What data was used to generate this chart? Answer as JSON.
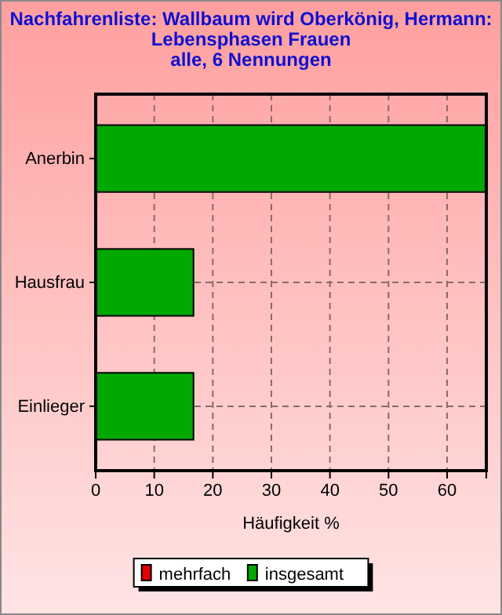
{
  "chart_data": {
    "type": "bar",
    "orientation": "horizontal",
    "title": "Nachfahrenliste: Wallbaum wird Oberkönig, Hermann:\nLebensphasen Frauen\nalle, 6 Nennungen",
    "xlabel": "Häufigkeit %",
    "categories": [
      "Anerbin",
      "Hausfrau",
      "Einlieger"
    ],
    "series": [
      {
        "name": "mehrfach",
        "color": "#e00000",
        "values": [
          null,
          null,
          null
        ]
      },
      {
        "name": "insgesamt",
        "color": "#00a800",
        "values": [
          66.7,
          16.7,
          16.7
        ]
      }
    ],
    "xlim": [
      0,
      66.7
    ],
    "xticks": [
      0,
      10,
      20,
      30,
      40,
      50,
      60
    ],
    "grid": true,
    "legend": "bottom"
  }
}
